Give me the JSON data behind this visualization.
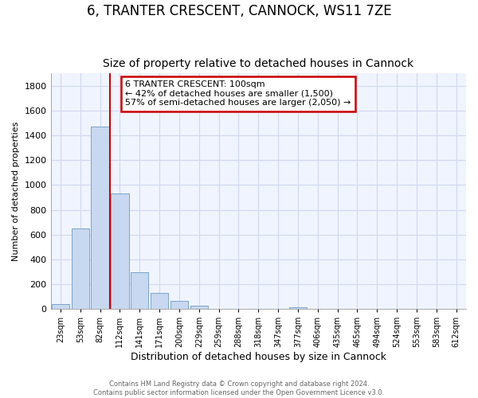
{
  "title": "6, TRANTER CRESCENT, CANNOCK, WS11 7ZE",
  "subtitle": "Size of property relative to detached houses in Cannock",
  "xlabel": "Distribution of detached houses by size in Cannock",
  "ylabel": "Number of detached properties",
  "bar_labels": [
    "23sqm",
    "53sqm",
    "82sqm",
    "112sqm",
    "141sqm",
    "171sqm",
    "200sqm",
    "229sqm",
    "259sqm",
    "288sqm",
    "318sqm",
    "347sqm",
    "377sqm",
    "406sqm",
    "435sqm",
    "465sqm",
    "494sqm",
    "524sqm",
    "553sqm",
    "583sqm",
    "612sqm"
  ],
  "bar_values": [
    40,
    650,
    1470,
    930,
    295,
    130,
    65,
    25,
    0,
    0,
    0,
    0,
    15,
    0,
    0,
    0,
    0,
    0,
    0,
    0,
    0
  ],
  "bar_color": "#c8d8f0",
  "bar_edge_color": "#7ba4cc",
  "vline_x": 2.5,
  "vline_color": "#cc0000",
  "annotation_line1": "6 TRANTER CRESCENT: 100sqm",
  "annotation_line2": "← 42% of detached houses are smaller (1,500)",
  "annotation_line3": "57% of semi-detached houses are larger (2,050) →",
  "annotation_box_color": "#cc0000",
  "ylim": [
    0,
    1900
  ],
  "yticks": [
    0,
    200,
    400,
    600,
    800,
    1000,
    1200,
    1400,
    1600,
    1800
  ],
  "footer_text": "Contains HM Land Registry data © Crown copyright and database right 2024.\nContains public sector information licensed under the Open Government Licence v3.0.",
  "background_color": "#ffffff",
  "plot_bg_color": "#f0f4ff",
  "grid_color": "#d0d8f0",
  "title_fontsize": 12,
  "subtitle_fontsize": 10
}
